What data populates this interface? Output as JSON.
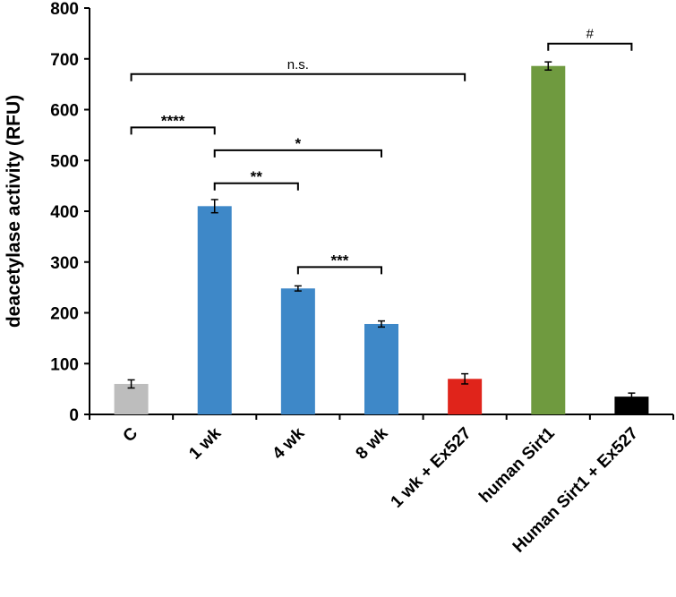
{
  "chart_data": {
    "type": "bar",
    "title": "",
    "xlabel": "",
    "ylabel": "deacetylase activity (RFU)",
    "ylim": [
      0,
      800
    ],
    "yticks": [
      0,
      100,
      200,
      300,
      400,
      500,
      600,
      700,
      800
    ],
    "grid": false,
    "categories": [
      "C",
      "1 wk",
      "4 wk",
      "8 wk",
      "1 wk + Ex527",
      "human Sirt1",
      "Human Sirt1 + Ex527"
    ],
    "values": [
      60,
      410,
      248,
      178,
      70,
      686,
      35
    ],
    "errors": [
      8,
      13,
      5,
      6,
      10,
      8,
      7
    ],
    "colors": [
      "#bdbdbd",
      "#3e88c8",
      "#3e88c8",
      "#3e88c8",
      "#e0241b",
      "#6f9a3f",
      "#000000"
    ],
    "significance": [
      {
        "from": 0,
        "to": 4,
        "level": 670,
        "label": "n.s."
      },
      {
        "from": 0,
        "to": 1,
        "level": 565,
        "label": "****"
      },
      {
        "from": 1,
        "to": 3,
        "level": 520,
        "label": "*"
      },
      {
        "from": 1,
        "to": 2,
        "level": 455,
        "label": "**"
      },
      {
        "from": 2,
        "to": 3,
        "level": 290,
        "label": "***"
      },
      {
        "from": 5,
        "to": 6,
        "level": 730,
        "label": "#"
      }
    ]
  }
}
